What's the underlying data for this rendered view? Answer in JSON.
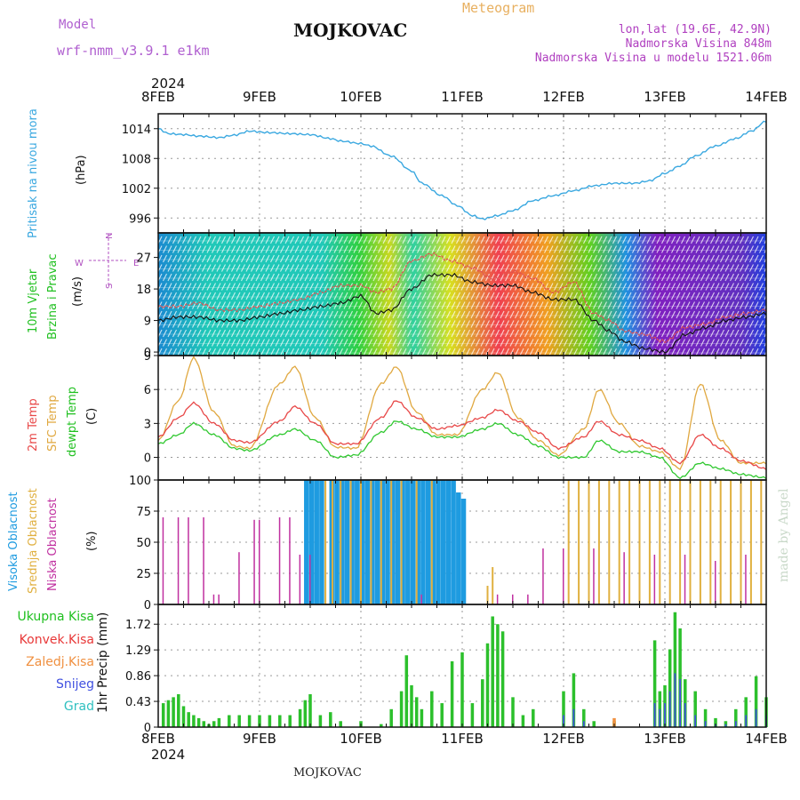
{
  "header": {
    "model_label": "Model",
    "model_run": "wrf-nmm_v3.9.1 e1km",
    "station": "MOJKOVAC",
    "product": "Meteogram",
    "lonlat": "lon,lat (19.6E, 42.9N)",
    "elevation": "Nadmorska Visina 848m",
    "model_elevation": "Nadmorska Visina u modelu 1521.06m"
  },
  "footer": {
    "station": "MOJKOVAC"
  },
  "watermark": "made by Angel",
  "time_axis": {
    "year": "2024",
    "days": [
      "8FEB",
      "9FEB",
      "10FEB",
      "11FEB",
      "12FEB",
      "13FEB",
      "14FEB"
    ]
  },
  "panels": {
    "pressure": {
      "label": "Pritisak na nivou mora",
      "unit": "(hPa)",
      "ticks": [
        "1014",
        "1008",
        "1002",
        "996"
      ],
      "color": "#3aa8e0"
    },
    "wind": {
      "label_1": "10m Vjetar",
      "label_2": "Brzina i Pravac",
      "unit": "(m/s)",
      "ticks": [
        "27",
        "18",
        "9",
        "0"
      ],
      "compass": {
        "n": "N",
        "w": "W",
        "e": "E",
        "s": "S"
      }
    },
    "temp": {
      "label_2m": "2m Temp",
      "label_sfc": "SFC Temp",
      "label_dew": "dewpt Temp",
      "unit": "(C)",
      "ticks": [
        "9",
        "6",
        "3",
        "0"
      ]
    },
    "cloud": {
      "label_high": "Visoka Oblacnost",
      "label_mid": "Srednja Oblacnost",
      "label_low": "Niska Oblacnost",
      "unit": "(%)",
      "ticks": [
        "100",
        "75",
        "50",
        "25",
        "0"
      ]
    },
    "precip": {
      "unit": "1hr Precip (mm)",
      "ticks": [
        "1.72",
        "1.29",
        "0.86",
        "0.43",
        "0"
      ],
      "legend": [
        "Ukupna Kisa",
        "Konvek.Kisa",
        "Zaledj.Kisa",
        "Snijeg",
        "Grad"
      ]
    }
  },
  "colors": {
    "pressure": "#3aa8e0",
    "temp2m": "#e84848",
    "sfc": "#e0a840",
    "dew": "#30c830",
    "cloud_high": "#1e9be0",
    "cloud_mid": "#e0b040",
    "cloud_low": "#c030a0",
    "rain": "#2cc02c",
    "conv": "#e83838",
    "frz": "#f09040",
    "snow": "#4050e0",
    "hail": "#30c0c0"
  },
  "chart_data": [
    {
      "type": "line",
      "name": "pressure",
      "x_days": [
        0,
        0.1,
        0.25,
        0.4,
        0.6,
        0.75,
        0.9,
        1.1,
        1.3,
        1.5,
        1.7,
        1.8,
        2.0,
        2.1,
        2.3,
        2.5,
        2.6,
        2.8,
        2.95,
        3.1,
        3.2,
        3.35,
        3.5,
        3.7,
        3.9,
        4.1,
        4.3,
        4.5,
        4.7,
        4.85,
        5.0,
        5.15,
        5.3,
        5.5,
        5.7,
        5.85,
        6.0
      ],
      "values": [
        1014,
        1013,
        1012.8,
        1012.5,
        1012.2,
        1012.7,
        1013.5,
        1013.2,
        1013,
        1012.8,
        1012,
        1011.5,
        1011,
        1010.5,
        1008.5,
        1005.5,
        1003,
        1000.5,
        998.5,
        996.5,
        995.8,
        996.5,
        997.5,
        999.5,
        1000.5,
        1001.5,
        1002.5,
        1003,
        1003,
        1003.5,
        1005,
        1006.5,
        1008.5,
        1010.5,
        1012,
        1013.5,
        1015.5
      ],
      "ylim": [
        993,
        1017
      ]
    },
    {
      "type": "line",
      "name": "wind_speed",
      "x_days": [
        0,
        0.2,
        0.4,
        0.6,
        0.8,
        1.0,
        1.2,
        1.4,
        1.6,
        1.8,
        2.0,
        2.15,
        2.3,
        2.5,
        2.7,
        2.9,
        3.1,
        3.3,
        3.5,
        3.7,
        3.9,
        4.1,
        4.3,
        4.45,
        4.6,
        4.8,
        5.0,
        5.2,
        5.4,
        5.6,
        5.8,
        6.0
      ],
      "series": [
        {
          "name": "mean",
          "values": [
            9,
            10,
            10,
            9,
            9,
            10,
            11,
            12,
            13,
            14,
            16,
            11,
            12,
            18,
            22,
            22,
            20,
            19,
            19,
            17,
            15,
            15,
            9,
            6,
            3,
            1,
            0,
            5,
            7,
            9,
            10,
            11
          ]
        },
        {
          "name": "gust",
          "values": [
            13,
            13,
            14,
            12,
            12,
            13,
            14,
            15,
            17,
            19,
            19,
            17,
            18,
            26,
            28,
            26,
            24,
            21,
            23,
            21,
            17,
            20,
            11,
            9,
            6,
            5,
            3,
            7,
            8,
            10,
            11,
            12
          ]
        }
      ],
      "ylim": [
        -1,
        34
      ]
    },
    {
      "type": "line",
      "name": "temperature",
      "x_days": [
        0,
        0.2,
        0.35,
        0.55,
        0.75,
        0.9,
        1.2,
        1.35,
        1.55,
        1.75,
        1.95,
        2.2,
        2.35,
        2.55,
        2.75,
        2.95,
        3.2,
        3.35,
        3.55,
        3.75,
        3.95,
        4.2,
        4.35,
        4.55,
        4.75,
        4.95,
        5.15,
        5.35,
        5.55,
        5.75,
        6.0
      ],
      "series": [
        {
          "name": "2m Temp",
          "values": [
            1.8,
            3.5,
            4.8,
            3.0,
            1.5,
            1.3,
            3.2,
            4.5,
            3.0,
            1.2,
            1.2,
            3.5,
            5.0,
            3.5,
            2.5,
            2.8,
            3.5,
            4.2,
            3.2,
            2.2,
            0.8,
            1.8,
            3.2,
            2.0,
            1.5,
            0.8,
            -0.5,
            2.0,
            0.8,
            -0.3,
            -1.0
          ]
        },
        {
          "name": "SFC Temp",
          "values": [
            1.5,
            5.0,
            8.8,
            4.0,
            1.0,
            0.8,
            6.5,
            8.0,
            3.5,
            0.9,
            0.8,
            6.5,
            8.0,
            4.0,
            2.0,
            2.0,
            6.0,
            7.5,
            3.5,
            1.5,
            0.2,
            2.5,
            6.0,
            3.0,
            1.0,
            0.5,
            -1.0,
            6.5,
            1.5,
            -0.5,
            -0.5
          ]
        },
        {
          "name": "dewpt Temp",
          "values": [
            1.2,
            2.0,
            3.0,
            2.0,
            0.8,
            0.6,
            2.0,
            2.5,
            1.5,
            0.0,
            0.2,
            2.2,
            3.2,
            2.5,
            1.8,
            1.8,
            2.5,
            3.0,
            2.0,
            1.0,
            0.0,
            0.0,
            1.5,
            0.5,
            0.5,
            0.0,
            -1.8,
            -0.5,
            -1.0,
            -1.5,
            -1.8
          ]
        }
      ],
      "ylim": [
        -2,
        9
      ]
    },
    {
      "type": "bar",
      "name": "cloud_cover",
      "bar_width_days": 0.022,
      "series": [
        {
          "name": "Visoka Oblacnost",
          "x_days": [
            1.45,
            1.5,
            1.55,
            1.6,
            1.7,
            1.75,
            1.8,
            1.85,
            1.9,
            1.95,
            2.0,
            2.05,
            2.1,
            2.15,
            2.2,
            2.25,
            2.3,
            2.35,
            2.4,
            2.45,
            2.5,
            2.55,
            2.6,
            2.65,
            2.7,
            2.75,
            2.8,
            2.85,
            2.9,
            2.95,
            3.0
          ],
          "values": [
            100,
            100,
            100,
            100,
            100,
            100,
            100,
            100,
            100,
            100,
            100,
            100,
            100,
            100,
            100,
            100,
            100,
            100,
            100,
            100,
            100,
            100,
            100,
            100,
            100,
            100,
            100,
            100,
            100,
            90,
            85
          ]
        },
        {
          "name": "Srednja Oblacnost",
          "x_days": [
            1.65,
            1.72,
            1.8,
            1.9,
            2.0,
            2.1,
            2.2,
            2.3,
            2.4,
            2.55,
            2.7,
            3.25,
            3.3,
            4.05,
            4.15,
            4.25,
            4.35,
            4.45,
            4.55,
            4.65,
            4.75,
            4.85,
            4.95,
            5.05,
            5.15,
            5.25,
            5.35,
            5.45,
            5.55,
            5.65,
            5.75,
            5.85,
            5.95
          ],
          "values": [
            100,
            100,
            100,
            100,
            100,
            100,
            100,
            100,
            100,
            100,
            100,
            15,
            30,
            100,
            100,
            100,
            100,
            100,
            100,
            100,
            100,
            100,
            100,
            100,
            100,
            100,
            100,
            100,
            100,
            100,
            100,
            100,
            100
          ]
        },
        {
          "name": "Niska Oblacnost",
          "x_days": [
            0.05,
            0.2,
            0.3,
            0.45,
            0.55,
            0.6,
            0.8,
            0.95,
            1.0,
            1.2,
            1.3,
            1.4,
            1.5,
            2.6,
            3.35,
            3.5,
            3.65,
            3.8,
            4.0,
            4.3,
            4.6,
            4.9,
            5.2,
            5.5,
            5.8
          ],
          "values": [
            70,
            70,
            70,
            70,
            8,
            8,
            42,
            68,
            68,
            70,
            70,
            40,
            40,
            8,
            8,
            8,
            8,
            45,
            45,
            45,
            42,
            40,
            40,
            35,
            40
          ]
        }
      ],
      "ylim": [
        0,
        100
      ]
    },
    {
      "type": "bar",
      "name": "precipitation",
      "bar_width_days": 0.022,
      "x_days": [
        0.05,
        0.1,
        0.15,
        0.2,
        0.25,
        0.3,
        0.35,
        0.4,
        0.45,
        0.5,
        0.55,
        0.6,
        0.7,
        0.8,
        0.9,
        1.0,
        1.1,
        1.2,
        1.3,
        1.4,
        1.45,
        1.5,
        1.6,
        1.7,
        1.8,
        2.0,
        2.2,
        2.3,
        2.4,
        2.45,
        2.5,
        2.55,
        2.6,
        2.7,
        2.8,
        2.9,
        3.0,
        3.1,
        3.2,
        3.25,
        3.3,
        3.35,
        3.4,
        3.5,
        3.6,
        3.7,
        4.0,
        4.1,
        4.2,
        4.3,
        4.5,
        4.9,
        4.95,
        5.0,
        5.05,
        5.1,
        5.15,
        5.2,
        5.3,
        5.4,
        5.5,
        5.6,
        5.7,
        5.8,
        5.9,
        6.0
      ],
      "series": [
        {
          "name": "Ukupna Kisa",
          "values": [
            0.4,
            0.45,
            0.5,
            0.55,
            0.35,
            0.25,
            0.2,
            0.15,
            0.1,
            0.05,
            0.1,
            0.15,
            0.2,
            0.2,
            0.2,
            0.2,
            0.2,
            0.2,
            0.2,
            0.3,
            0.45,
            0.55,
            0.2,
            0.25,
            0.1,
            0.1,
            0.05,
            0.3,
            0.6,
            1.2,
            0.7,
            0.5,
            0.3,
            0.6,
            0.4,
            1.1,
            1.25,
            0.4,
            0.8,
            1.4,
            1.85,
            1.72,
            1.6,
            0.5,
            0.2,
            0.3,
            0.6,
            0.9,
            0.3,
            0.1,
            0.1,
            1.45,
            0.6,
            0.7,
            1.3,
            1.92,
            1.65,
            0.8,
            0.6,
            0.3,
            0.15,
            0.1,
            0.3,
            0.5,
            0.85,
            0.5
          ]
        },
        {
          "name": "Snijeg",
          "values": [
            0,
            0,
            0,
            0,
            0,
            0,
            0,
            0,
            0,
            0,
            0,
            0,
            0,
            0,
            0,
            0,
            0,
            0,
            0,
            0,
            0,
            0,
            0,
            0,
            0,
            0,
            0,
            0,
            0,
            0,
            0,
            0,
            0,
            0,
            0,
            0,
            0,
            0,
            0,
            0,
            0,
            0,
            0,
            0,
            0,
            0,
            0.2,
            0.3,
            0.1,
            0,
            0,
            0.4,
            0.3,
            0.4,
            0.6,
            0.9,
            0.8,
            0.4,
            0.2,
            0.1,
            0.05,
            0.05,
            0.1,
            0.2,
            0.3,
            0.2
          ]
        },
        {
          "name": "Zaledj.Kisa",
          "values": [
            0,
            0,
            0,
            0,
            0,
            0,
            0,
            0,
            0,
            0,
            0,
            0,
            0,
            0,
            0,
            0,
            0,
            0,
            0,
            0,
            0,
            0,
            0,
            0,
            0,
            0,
            0,
            0,
            0,
            0,
            0,
            0,
            0,
            0,
            0,
            0,
            0,
            0,
            0,
            0,
            0,
            0,
            0,
            0,
            0,
            0,
            0,
            0,
            0,
            0,
            0.15,
            0,
            0,
            0,
            0,
            0,
            0,
            0,
            0,
            0,
            0,
            0,
            0,
            0,
            0,
            0
          ]
        }
      ],
      "ylim": [
        0,
        2.05
      ]
    }
  ]
}
